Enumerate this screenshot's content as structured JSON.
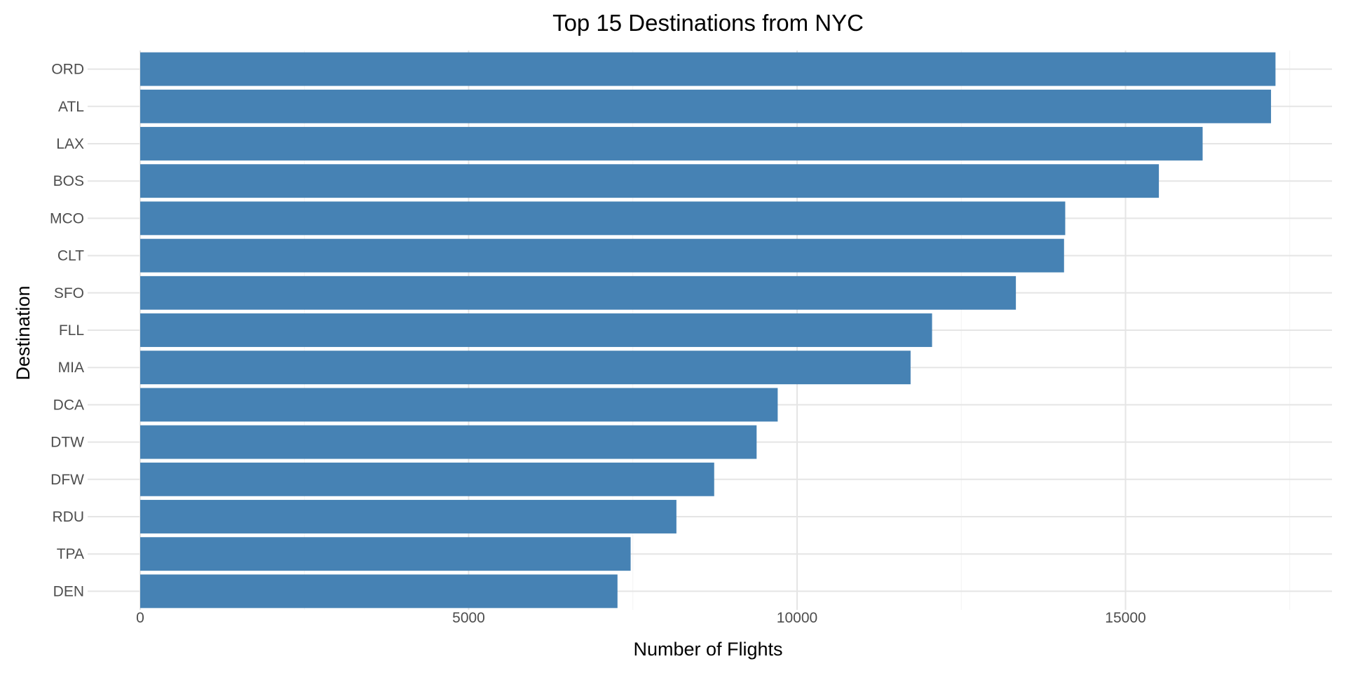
{
  "chart_data": {
    "type": "bar",
    "orientation": "horizontal",
    "title": "Top 15 Destinations from NYC",
    "xlabel": "Number of Flights",
    "ylabel": "Destination",
    "categories": [
      "ORD",
      "ATL",
      "LAX",
      "BOS",
      "MCO",
      "CLT",
      "SFO",
      "FLL",
      "MIA",
      "DCA",
      "DTW",
      "DFW",
      "RDU",
      "TPA",
      "DEN"
    ],
    "values": [
      17283,
      17215,
      16174,
      15508,
      14082,
      14064,
      13331,
      12055,
      11728,
      9705,
      9384,
      8738,
      8163,
      7466,
      7266
    ],
    "xlim": [
      0,
      18000
    ],
    "xticks": [
      0,
      5000,
      10000,
      15000
    ],
    "xtick_labels": [
      "0",
      "5000",
      "10000",
      "15000"
    ],
    "bar_color": "#4682b4",
    "grid": true,
    "legend": "none"
  }
}
